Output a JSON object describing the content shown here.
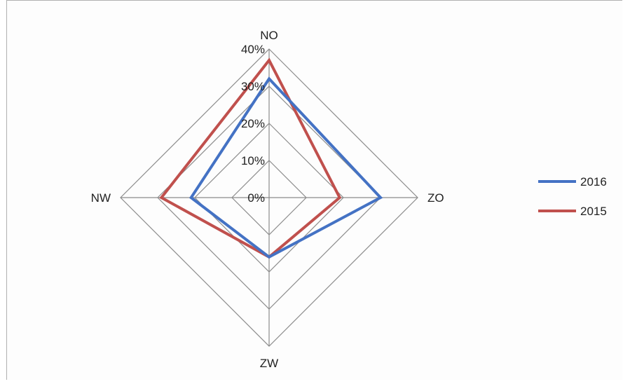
{
  "chart_data": {
    "type": "radar",
    "categories": [
      "NO",
      "ZO",
      "ZW",
      "NW"
    ],
    "tick_labels": [
      "0%",
      "10%",
      "20%",
      "30%",
      "40%"
    ],
    "rmax": 40,
    "series": [
      {
        "name": "2016",
        "values": [
          32,
          30,
          16,
          21
        ],
        "color": "#4472C4"
      },
      {
        "name": "2015",
        "values": [
          37,
          19,
          16,
          29
        ],
        "color": "#C0504D"
      }
    ],
    "legend_position": "right",
    "grid": true
  }
}
